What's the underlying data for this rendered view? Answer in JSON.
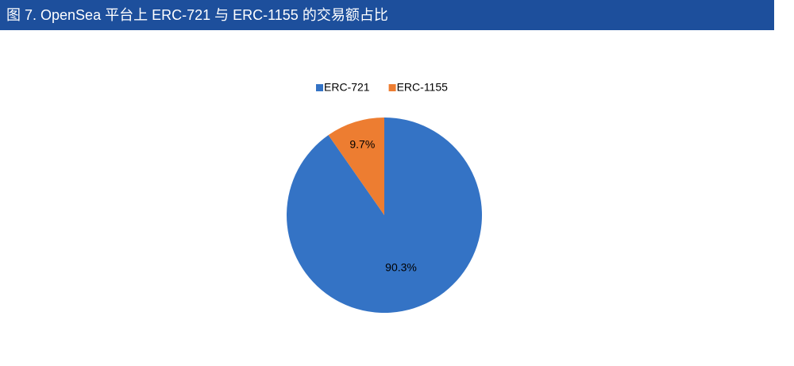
{
  "chart_data": {
    "type": "pie",
    "title": "图 7. OpenSea 平台上 ERC-721 与 ERC-1155 的交易额占比",
    "categories": [
      "ERC-721",
      "ERC-1155"
    ],
    "values": [
      90.3,
      9.7
    ],
    "value_labels": [
      "90.3%",
      "9.7%"
    ],
    "colors": [
      "#3473c5",
      "#ed7d31"
    ],
    "legend": "top"
  }
}
